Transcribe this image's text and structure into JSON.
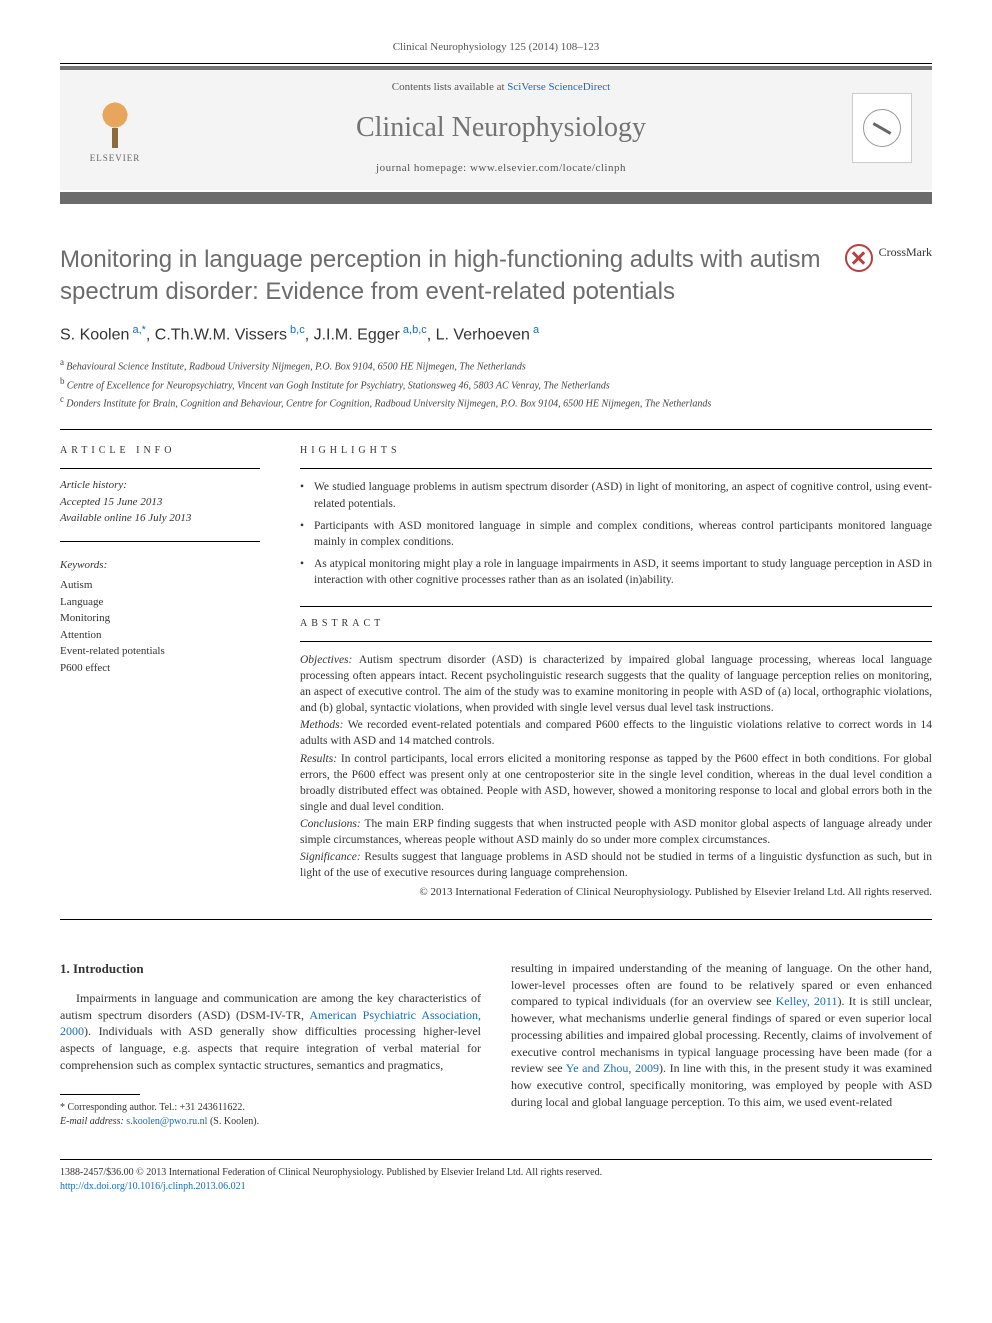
{
  "header": {
    "citation": "Clinical Neurophysiology 125 (2014) 108–123",
    "contents_prefix": "Contents lists available at ",
    "contents_link": "SciVerse ScienceDirect",
    "journal_name": "Clinical Neurophysiology",
    "homepage_prefix": "journal homepage: ",
    "homepage_url": "www.elsevier.com/locate/clinph",
    "publisher_label": "ELSEVIER",
    "colors": {
      "bar": "#6b6b6b",
      "box_bg": "#f4f4f4",
      "journal_color": "#737373",
      "link_color": "#1a6bb8",
      "elsevier_orange": "#e8a55c"
    }
  },
  "title": "Monitoring in language perception in high-functioning adults with autism spectrum disorder: Evidence from event-related potentials",
  "crossmark_label": "CrossMark",
  "authors_html": "S. Koolen",
  "authors": [
    {
      "name": "S. Koolen",
      "sup": "a,*"
    },
    {
      "name": "C.Th.W.M. Vissers",
      "sup": "b,c"
    },
    {
      "name": "J.I.M. Egger",
      "sup": "a,b,c"
    },
    {
      "name": "L. Verhoeven",
      "sup": "a"
    }
  ],
  "affiliations": [
    {
      "sup": "a",
      "text": "Behavioural Science Institute, Radboud University Nijmegen, P.O. Box 9104, 6500 HE Nijmegen, The Netherlands"
    },
    {
      "sup": "b",
      "text": "Centre of Excellence for Neuropsychiatry, Vincent van Gogh Institute for Psychiatry, Stationsweg 46, 5803 AC Venray, The Netherlands"
    },
    {
      "sup": "c",
      "text": "Donders Institute for Brain, Cognition and Behaviour, Centre for Cognition, Radboud University Nijmegen, P.O. Box 9104, 6500 HE Nijmegen, The Netherlands"
    }
  ],
  "article_info": {
    "heading": "ARTICLE INFO",
    "history_label": "Article history:",
    "accepted": "Accepted 15 June 2013",
    "online": "Available online 16 July 2013",
    "keywords_label": "Keywords:",
    "keywords": [
      "Autism",
      "Language",
      "Monitoring",
      "Attention",
      "Event-related potentials",
      "P600 effect"
    ]
  },
  "highlights": {
    "heading": "HIGHLIGHTS",
    "items": [
      "We studied language problems in autism spectrum disorder (ASD) in light of monitoring, an aspect of cognitive control, using event-related potentials.",
      "Participants with ASD monitored language in simple and complex conditions, whereas control participants monitored language mainly in complex conditions.",
      "As atypical monitoring might play a role in language impairments in ASD, it seems important to study language perception in ASD in interaction with other cognitive processes rather than as an isolated (in)ability."
    ]
  },
  "abstract": {
    "heading": "ABSTRACT",
    "sections": [
      {
        "label": "Objectives:",
        "text": "Autism spectrum disorder (ASD) is characterized by impaired global language processing, whereas local language processing often appears intact. Recent psycholinguistic research suggests that the quality of language perception relies on monitoring, an aspect of executive control. The aim of the study was to examine monitoring in people with ASD of (a) local, orthographic violations, and (b) global, syntactic violations, when provided with single level versus dual level task instructions."
      },
      {
        "label": "Methods:",
        "text": "We recorded event-related potentials and compared P600 effects to the linguistic violations relative to correct words in 14 adults with ASD and 14 matched controls."
      },
      {
        "label": "Results:",
        "text": "In control participants, local errors elicited a monitoring response as tapped by the P600 effect in both conditions. For global errors, the P600 effect was present only at one centroposterior site in the single level condition, whereas in the dual level condition a broadly distributed effect was obtained. People with ASD, however, showed a monitoring response to local and global errors both in the single and dual level condition."
      },
      {
        "label": "Conclusions:",
        "text": "The main ERP finding suggests that when instructed people with ASD monitor global aspects of language already under simple circumstances, whereas people without ASD mainly do so under more complex circumstances."
      },
      {
        "label": "Significance:",
        "text": "Results suggest that language problems in ASD should not be studied in terms of a linguistic dysfunction as such, but in light of the use of executive resources during language comprehension."
      }
    ],
    "copyright": "© 2013 International Federation of Clinical Neurophysiology. Published by Elsevier Ireland Ltd. All rights reserved."
  },
  "body": {
    "section_number": "1.",
    "section_title": "Introduction",
    "left_para": "Impairments in language and communication are among the key characteristics of autism spectrum disorders (ASD) (DSM-IV-TR, ",
    "left_ref": "American Psychiatric Association, 2000",
    "left_para2": "). Individuals with ASD generally show difficulties processing higher-level aspects of language, e.g. aspects that require integration of verbal material for comprehension such as complex syntactic structures, semantics and pragmatics,",
    "right_para_a": "resulting in impaired understanding of the meaning of language. On the other hand, lower-level processes often are found to be relatively spared or even enhanced compared to typical individuals (for an overview see ",
    "right_ref1": "Kelley, 2011",
    "right_para_b": "). It is still unclear, however, what mechanisms underlie general findings of spared or even superior local processing abilities and impaired global processing. Recently, claims of involvement of executive control mechanisms in typical language processing have been made (for a review see ",
    "right_ref2": "Ye and Zhou, 2009",
    "right_para_c": "). In line with this, in the present study it was examined how executive control, specifically monitoring, was employed by people with ASD during local and global language perception. To this aim, we used event-related"
  },
  "footnote": {
    "corresponding": "* Corresponding author. Tel.: +31 243611622.",
    "email_label": "E-mail address:",
    "email": "s.koolen@pwo.ru.nl",
    "email_suffix": "(S. Koolen)."
  },
  "footer": {
    "line1": "1388-2457/$36.00 © 2013 International Federation of Clinical Neurophysiology. Published by Elsevier Ireland Ltd. All rights reserved.",
    "doi": "http://dx.doi.org/10.1016/j.clinph.2013.06.021"
  },
  "typography": {
    "title_fontsize": 24,
    "title_color": "#6c6c6c",
    "body_fontsize": 12,
    "author_fontsize": 16,
    "abstract_fontsize": 11.5
  }
}
